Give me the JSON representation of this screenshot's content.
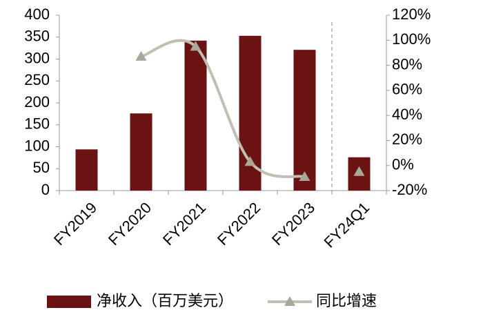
{
  "chart_data": {
    "type": "bar_line",
    "categories": [
      "FY2019",
      "FY2020",
      "FY2021",
      "FY2022",
      "FY2023",
      "FY24Q1"
    ],
    "series": [
      {
        "name": "净收入（百万美元）",
        "type": "bar",
        "color": "#6b1212",
        "values": [
          94,
          176,
          342,
          353,
          321,
          76
        ]
      },
      {
        "name": "同比增速",
        "type": "line",
        "axis": "y2",
        "color": "#bfbfb2",
        "values": [
          null,
          87,
          95,
          3,
          -9,
          -5
        ]
      }
    ],
    "ylim": [
      0,
      400
    ],
    "yticks": [
      0,
      50,
      100,
      150,
      200,
      250,
      300,
      350,
      400
    ],
    "y2lim": [
      -20,
      120
    ],
    "y2ticks": [
      {
        "value": -20,
        "label": "-20%"
      },
      {
        "value": 0,
        "label": "0%"
      },
      {
        "value": 20,
        "label": "20%"
      },
      {
        "value": 40,
        "label": "40%"
      },
      {
        "value": 60,
        "label": "60%"
      },
      {
        "value": 80,
        "label": "80%"
      },
      {
        "value": 100,
        "label": "100%"
      },
      {
        "value": 120,
        "label": "120%"
      }
    ],
    "divider_after": 4,
    "smooth": true,
    "legend": "bottom"
  }
}
